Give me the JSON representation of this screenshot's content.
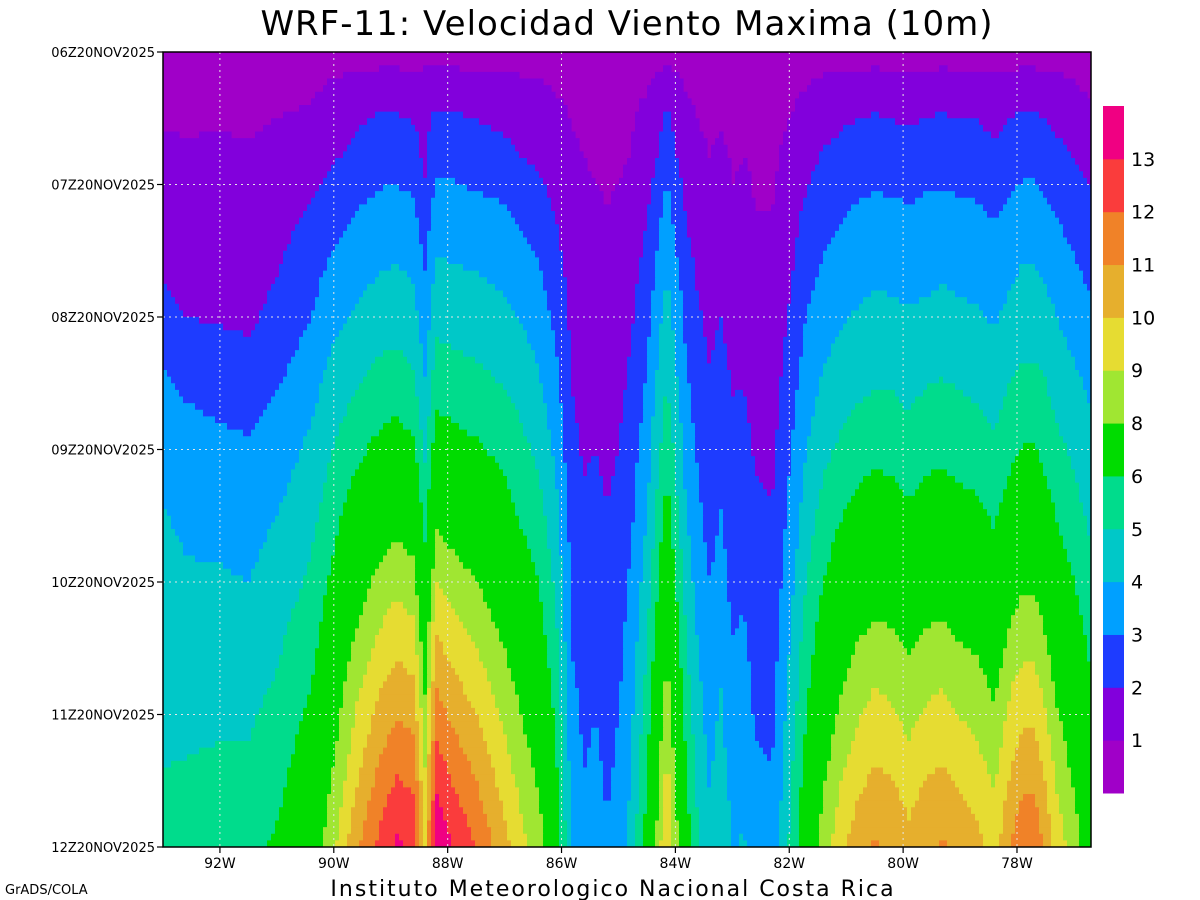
{
  "chart_data": {
    "type": "heatmap",
    "title": "WRF-11: Velocidad  Viento Maxima (10m)",
    "footer": "Instituto Meteorologico Nacional Costa Rica",
    "software_label": "GrADS/COLA",
    "xlabel": "",
    "ylabel": "",
    "x_axis": {
      "unit": "longitude_degW",
      "range": [
        93.0,
        76.7
      ],
      "ticks": [
        92,
        90,
        88,
        86,
        84,
        82,
        80,
        78
      ],
      "tick_labels": [
        "92W",
        "90W",
        "88W",
        "86W",
        "84W",
        "82W",
        "80W",
        "78W"
      ]
    },
    "y_axis": {
      "unit": "hour_utc",
      "range": [
        6,
        12
      ],
      "ticks": [
        6,
        7,
        8,
        9,
        10,
        11,
        12
      ],
      "tick_labels": [
        "06Z20NOV2025",
        "07Z20NOV2025",
        "08Z20NOV2025",
        "09Z20NOV2025",
        "10Z20NOV2025",
        "11Z20NOV2025",
        "12Z20NOV2025"
      ],
      "direction": "top-to-bottom"
    },
    "grid": true,
    "colorbar": {
      "placement": "right",
      "levels": [
        1,
        2,
        3,
        4,
        5,
        6,
        8,
        9,
        10,
        11,
        12,
        13
      ],
      "level_labels": [
        "1",
        "2",
        "3",
        "4",
        "5",
        "6",
        "8",
        "9",
        "10",
        "11",
        "12",
        "13"
      ],
      "colors": [
        "#a000c8",
        "#8200dc",
        "#1e3cff",
        "#00a0ff",
        "#00c8c8",
        "#00dc8c",
        "#00dc00",
        "#a0e632",
        "#e6dc32",
        "#e6af2d",
        "#f08228",
        "#fa3c3c",
        "#f00082"
      ]
    },
    "profile": {
      "description_units": "wind speed values, piecewise-linear in longitude, interpolated in time",
      "lon": [
        93.0,
        92.6,
        92.0,
        91.5,
        91.0,
        90.4,
        90.0,
        89.6,
        89.2,
        88.9,
        88.6,
        88.4,
        88.2,
        87.9,
        87.5,
        87.0,
        86.7,
        86.4,
        86.1,
        85.8,
        85.6,
        85.4,
        85.2,
        85.0,
        84.8,
        84.5,
        84.3,
        84.15,
        84.0,
        83.8,
        83.6,
        83.4,
        83.2,
        83.0,
        82.8,
        82.6,
        82.3,
        82.0,
        81.7,
        81.4,
        81.1,
        80.8,
        80.5,
        80.2,
        79.9,
        79.6,
        79.3,
        79.0,
        78.7,
        78.4,
        78.1,
        77.9,
        77.7,
        77.5,
        77.3,
        77.0,
        76.7
      ],
      "time": [
        6.0,
        6.4,
        6.8,
        7.2,
        7.6,
        8.0,
        8.4,
        8.8,
        9.2,
        9.6,
        10.0,
        10.4,
        10.8,
        11.2,
        11.6,
        12.0
      ],
      "values": [
        [
          0.6,
          0.6,
          0.6,
          0.6,
          0.6,
          0.6,
          0.6,
          0.6,
          0.6,
          0.6,
          0.6,
          0.6,
          0.6,
          0.6,
          0.6,
          0.6,
          0.6,
          0.6,
          0.6,
          0.6,
          0.6,
          0.6,
          0.6,
          0.6,
          0.6,
          0.6,
          0.6,
          0.6,
          0.6,
          0.6,
          0.6,
          0.6,
          0.6,
          0.6,
          0.6,
          0.6,
          0.6,
          0.6,
          0.6,
          0.6,
          0.6,
          0.6,
          0.6,
          0.6,
          0.6,
          0.6,
          0.6,
          0.6,
          0.6,
          0.6,
          0.6,
          0.6,
          0.6,
          0.6,
          0.6,
          0.6,
          0.6
        ],
        [
          0.7,
          0.7,
          0.8,
          0.8,
          0.9,
          1.0,
          1.4,
          1.7,
          1.9,
          1.9,
          1.8,
          1.9,
          1.9,
          1.9,
          1.8,
          1.6,
          1.5,
          1.4,
          1.1,
          0.9,
          0.8,
          0.8,
          0.8,
          0.8,
          0.9,
          1.1,
          1.6,
          2.0,
          1.6,
          1.1,
          0.9,
          0.8,
          0.8,
          0.7,
          0.7,
          0.7,
          0.7,
          0.9,
          1.2,
          1.5,
          1.7,
          1.8,
          1.9,
          1.8,
          1.7,
          1.8,
          1.9,
          1.8,
          1.8,
          1.6,
          1.8,
          1.9,
          1.9,
          1.8,
          1.6,
          1.3,
          1.0
        ],
        [
          1.3,
          1.2,
          1.2,
          1.1,
          1.3,
          1.6,
          1.9,
          2.3,
          2.6,
          2.6,
          2.4,
          1.8,
          2.7,
          2.7,
          2.5,
          2.3,
          2.0,
          1.8,
          1.4,
          1.1,
          1.0,
          0.9,
          0.9,
          0.9,
          1.0,
          1.4,
          2.1,
          2.7,
          2.1,
          1.5,
          1.2,
          1.0,
          1.2,
          0.9,
          1.0,
          0.9,
          0.8,
          1.3,
          1.7,
          2.1,
          2.3,
          2.5,
          2.6,
          2.5,
          2.4,
          2.6,
          2.6,
          2.5,
          2.5,
          2.2,
          2.6,
          2.7,
          2.7,
          2.5,
          2.3,
          2.0,
          1.7
        ],
        [
          1.6,
          1.4,
          1.4,
          1.3,
          1.6,
          2.1,
          2.6,
          3.0,
          3.3,
          3.4,
          3.2,
          2.4,
          3.5,
          3.4,
          3.3,
          3.1,
          2.8,
          2.5,
          1.9,
          1.3,
          1.1,
          1.1,
          1.0,
          1.1,
          1.3,
          1.9,
          2.7,
          3.4,
          2.7,
          1.9,
          1.5,
          1.3,
          1.4,
          1.1,
          1.2,
          1.0,
          1.0,
          1.5,
          2.2,
          2.6,
          2.9,
          3.1,
          3.2,
          3.2,
          3.1,
          3.2,
          3.3,
          3.2,
          3.1,
          2.9,
          3.2,
          3.4,
          3.4,
          3.2,
          2.9,
          2.6,
          2.2
        ],
        [
          1.8,
          1.7,
          1.6,
          1.6,
          1.9,
          2.6,
          3.2,
          3.6,
          3.9,
          4.0,
          3.8,
          2.9,
          4.1,
          4.0,
          3.9,
          3.7,
          3.4,
          3.0,
          2.4,
          1.5,
          1.3,
          1.3,
          1.1,
          1.3,
          1.6,
          2.3,
          3.2,
          3.9,
          3.2,
          2.3,
          1.8,
          1.5,
          1.7,
          1.4,
          1.4,
          1.2,
          1.1,
          1.8,
          2.6,
          3.1,
          3.4,
          3.6,
          3.7,
          3.7,
          3.6,
          3.7,
          3.8,
          3.7,
          3.6,
          3.4,
          3.8,
          4.0,
          4.0,
          3.8,
          3.5,
          3.1,
          2.7
        ],
        [
          2.3,
          2.0,
          1.9,
          1.8,
          2.3,
          3.0,
          3.7,
          4.1,
          4.5,
          4.6,
          4.4,
          3.4,
          4.7,
          4.6,
          4.5,
          4.2,
          3.9,
          3.5,
          2.8,
          1.7,
          1.4,
          1.5,
          1.3,
          1.5,
          1.8,
          2.7,
          3.7,
          4.4,
          3.7,
          2.7,
          2.1,
          1.8,
          2.0,
          1.6,
          1.7,
          1.4,
          1.3,
          2.1,
          3.0,
          3.5,
          3.9,
          4.1,
          4.3,
          4.2,
          4.1,
          4.2,
          4.3,
          4.2,
          4.1,
          3.9,
          4.3,
          4.5,
          4.5,
          4.3,
          4.0,
          3.6,
          3.2
        ],
        [
          3.0,
          2.7,
          2.5,
          2.4,
          2.8,
          3.5,
          4.3,
          4.8,
          5.2,
          5.3,
          5.0,
          3.9,
          5.4,
          5.3,
          5.1,
          4.8,
          4.5,
          4.0,
          3.2,
          1.9,
          1.6,
          1.7,
          1.5,
          1.7,
          2.1,
          3.0,
          4.1,
          4.9,
          4.1,
          3.0,
          2.4,
          2.0,
          2.3,
          1.9,
          1.9,
          1.6,
          1.5,
          2.4,
          3.4,
          4.0,
          4.4,
          4.6,
          4.8,
          4.8,
          4.6,
          4.8,
          4.9,
          4.8,
          4.6,
          4.4,
          4.9,
          5.1,
          5.1,
          4.9,
          4.5,
          4.1,
          3.7
        ],
        [
          3.6,
          3.2,
          3.0,
          2.9,
          3.3,
          4.0,
          4.8,
          5.4,
          5.9,
          6.1,
          5.8,
          4.5,
          6.2,
          6.0,
          5.8,
          5.4,
          5.0,
          4.5,
          3.6,
          2.1,
          1.8,
          1.9,
          1.7,
          1.9,
          2.3,
          3.4,
          4.6,
          5.4,
          4.6,
          3.4,
          2.7,
          2.3,
          2.6,
          2.1,
          2.2,
          1.8,
          1.7,
          2.7,
          3.8,
          4.5,
          4.9,
          5.2,
          5.4,
          5.3,
          5.1,
          5.4,
          5.5,
          5.3,
          5.2,
          4.9,
          5.5,
          5.7,
          5.7,
          5.4,
          5.0,
          4.6,
          4.1
        ],
        [
          3.9,
          3.6,
          3.4,
          3.3,
          3.7,
          4.4,
          5.3,
          6.1,
          6.7,
          6.9,
          6.6,
          5.1,
          7.0,
          6.8,
          6.5,
          6.0,
          5.5,
          5.0,
          4.0,
          2.3,
          2.0,
          2.1,
          1.9,
          2.1,
          2.6,
          3.7,
          5.0,
          6.0,
          5.0,
          3.7,
          3.0,
          2.5,
          2.8,
          2.3,
          2.4,
          2.0,
          1.9,
          3.0,
          4.2,
          5.0,
          5.5,
          5.9,
          6.1,
          6.0,
          5.7,
          6.0,
          6.1,
          5.9,
          5.8,
          5.4,
          6.1,
          6.4,
          6.4,
          6.0,
          5.5,
          5.0,
          4.5
        ],
        [
          4.1,
          3.9,
          3.8,
          3.7,
          4.1,
          4.8,
          5.8,
          6.8,
          7.5,
          7.8,
          7.5,
          5.8,
          8.0,
          7.6,
          7.2,
          6.6,
          6.0,
          5.5,
          4.4,
          2.5,
          2.2,
          2.3,
          2.1,
          2.3,
          2.8,
          4.1,
          5.5,
          6.6,
          5.5,
          4.1,
          3.3,
          2.7,
          3.1,
          2.5,
          2.6,
          2.2,
          2.1,
          3.3,
          4.6,
          5.5,
          6.1,
          6.5,
          6.8,
          6.7,
          6.4,
          6.7,
          6.8,
          6.6,
          6.4,
          6.0,
          6.8,
          7.1,
          7.1,
          6.6,
          6.1,
          5.5,
          4.9
        ],
        [
          4.3,
          4.1,
          4.1,
          4.0,
          4.4,
          5.2,
          6.3,
          7.4,
          8.3,
          8.7,
          8.4,
          6.5,
          9.0,
          8.5,
          8.0,
          7.2,
          6.6,
          6.0,
          4.8,
          2.7,
          2.4,
          2.5,
          2.2,
          2.5,
          3.1,
          4.5,
          6.0,
          7.2,
          6.0,
          4.5,
          3.6,
          3.0,
          3.4,
          2.7,
          2.9,
          2.4,
          2.3,
          3.6,
          5.0,
          6.0,
          6.7,
          7.2,
          7.5,
          7.4,
          7.0,
          7.4,
          7.5,
          7.2,
          7.0,
          6.6,
          7.5,
          7.8,
          7.8,
          7.3,
          6.6,
          6.0,
          5.3
        ],
        [
          4.5,
          4.4,
          4.4,
          4.3,
          4.8,
          5.6,
          6.8,
          8.1,
          9.1,
          9.6,
          9.3,
          7.2,
          10.0,
          9.4,
          8.8,
          7.8,
          7.1,
          6.5,
          5.2,
          2.9,
          2.6,
          2.7,
          2.4,
          2.7,
          3.3,
          4.9,
          6.5,
          7.8,
          6.5,
          4.9,
          3.9,
          3.2,
          3.7,
          3.0,
          3.1,
          2.6,
          2.5,
          3.9,
          5.4,
          6.5,
          7.3,
          7.9,
          8.2,
          8.1,
          7.7,
          8.1,
          8.2,
          7.9,
          7.7,
          7.2,
          8.2,
          8.6,
          8.6,
          8.0,
          7.2,
          6.5,
          5.7
        ],
        [
          4.7,
          4.6,
          4.7,
          4.7,
          5.1,
          6.0,
          7.3,
          8.8,
          9.9,
          10.5,
          10.2,
          7.9,
          11.0,
          10.3,
          9.6,
          8.5,
          7.7,
          7.0,
          5.6,
          3.1,
          2.8,
          2.9,
          2.6,
          2.9,
          3.5,
          5.3,
          7.0,
          8.4,
          7.0,
          5.3,
          4.2,
          3.5,
          4.0,
          3.2,
          3.4,
          2.8,
          2.7,
          4.2,
          5.8,
          7.0,
          7.9,
          8.6,
          9.0,
          8.8,
          8.4,
          8.8,
          9.0,
          8.6,
          8.4,
          7.8,
          9.0,
          9.4,
          9.4,
          8.7,
          7.8,
          7.0,
          6.1
        ],
        [
          4.9,
          4.9,
          5.0,
          5.0,
          5.5,
          6.4,
          7.8,
          9.4,
          10.7,
          11.4,
          11.1,
          8.6,
          12.0,
          11.2,
          10.4,
          9.1,
          8.2,
          7.5,
          6.0,
          3.3,
          2.9,
          3.1,
          2.7,
          3.1,
          3.8,
          5.7,
          7.5,
          9.0,
          7.5,
          5.7,
          4.5,
          3.7,
          4.3,
          3.4,
          3.6,
          3.0,
          2.9,
          4.5,
          6.2,
          7.5,
          8.5,
          9.2,
          9.7,
          9.5,
          9.0,
          9.5,
          9.7,
          9.3,
          9.0,
          8.4,
          9.7,
          10.2,
          10.2,
          9.4,
          8.4,
          7.5,
          6.5
        ],
        [
          5.1,
          5.2,
          5.3,
          5.3,
          5.8,
          6.8,
          8.3,
          10.1,
          11.5,
          12.3,
          12.0,
          9.3,
          13.0,
          12.1,
          11.2,
          9.7,
          8.8,
          8.0,
          6.4,
          3.5,
          3.1,
          3.3,
          2.9,
          3.3,
          4.0,
          6.1,
          8.0,
          9.6,
          8.0,
          6.1,
          4.8,
          4.0,
          4.6,
          3.7,
          3.9,
          3.2,
          3.1,
          4.8,
          6.6,
          8.0,
          9.1,
          9.9,
          10.4,
          10.2,
          9.7,
          10.2,
          10.4,
          10.0,
          9.7,
          9.0,
          10.4,
          11.0,
          11.0,
          10.1,
          9.0,
          8.0,
          6.9
        ],
        [
          5.3,
          5.4,
          5.6,
          5.6,
          6.2,
          7.2,
          8.8,
          10.8,
          12.3,
          13.2,
          12.9,
          10.0,
          14.0,
          13.0,
          12.0,
          10.3,
          9.3,
          8.5,
          6.8,
          3.7,
          3.3,
          3.5,
          3.1,
          3.5,
          4.3,
          6.5,
          8.5,
          10.2,
          8.5,
          6.5,
          5.1,
          4.2,
          4.9,
          3.9,
          4.1,
          3.4,
          3.3,
          5.1,
          7.0,
          8.5,
          9.7,
          10.6,
          11.1,
          10.9,
          10.3,
          10.9,
          11.1,
          10.7,
          10.3,
          9.6,
          11.1,
          11.8,
          11.8,
          10.8,
          9.6,
          8.5,
          7.3
        ]
      ]
    }
  }
}
